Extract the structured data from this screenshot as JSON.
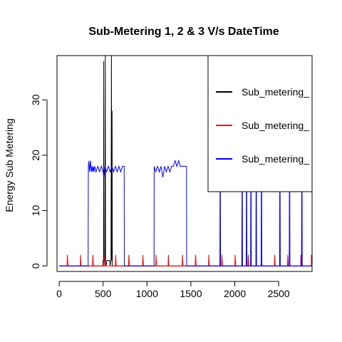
{
  "chart_data": {
    "type": "line",
    "title": "Sub-Metering 1, 2 & 3 V/s DateTime",
    "xlabel": "",
    "ylabel": "Energy Sub Metering",
    "xlim": [
      -25,
      2880
    ],
    "ylim": [
      -1,
      38
    ],
    "x_ticks": [
      0,
      500,
      1000,
      1500,
      2000,
      2500
    ],
    "y_ticks": [
      0,
      10,
      20,
      30
    ],
    "grid": false,
    "legend_position": "top-right",
    "series": [
      {
        "name": "Sub_metering_",
        "color": "#000000",
        "points": [
          [
            0,
            0
          ],
          [
            498,
            0
          ],
          [
            500,
            1
          ],
          [
            505,
            1
          ],
          [
            507,
            37
          ],
          [
            509,
            1
          ],
          [
            512,
            0
          ],
          [
            520,
            1
          ],
          [
            525,
            38
          ],
          [
            528,
            1
          ],
          [
            533,
            0
          ],
          [
            545,
            1
          ],
          [
            575,
            1
          ],
          [
            580,
            0
          ],
          [
            590,
            1
          ],
          [
            595,
            38
          ],
          [
            598,
            1
          ],
          [
            602,
            28
          ],
          [
            605,
            0
          ],
          [
            2880,
            0
          ]
        ]
      },
      {
        "name": "Sub_metering_",
        "color": "#ff0000",
        "points": [
          [
            0,
            0
          ],
          [
            90,
            0
          ],
          [
            93,
            2
          ],
          [
            97,
            1
          ],
          [
            100,
            0
          ],
          [
            240,
            0
          ],
          [
            243,
            2
          ],
          [
            247,
            1
          ],
          [
            250,
            0
          ],
          [
            380,
            0
          ],
          [
            383,
            2
          ],
          [
            387,
            1
          ],
          [
            390,
            0
          ],
          [
            510,
            0
          ],
          [
            513,
            2
          ],
          [
            517,
            1
          ],
          [
            520,
            0
          ],
          [
            640,
            0
          ],
          [
            643,
            2
          ],
          [
            647,
            1
          ],
          [
            650,
            0
          ],
          [
            790,
            0
          ],
          [
            793,
            2
          ],
          [
            797,
            1
          ],
          [
            800,
            0
          ],
          [
            950,
            0
          ],
          [
            953,
            2
          ],
          [
            957,
            1
          ],
          [
            960,
            0
          ],
          [
            1100,
            0
          ],
          [
            1103,
            2
          ],
          [
            1107,
            1
          ],
          [
            1110,
            0
          ],
          [
            1240,
            0
          ],
          [
            1243,
            2
          ],
          [
            1247,
            1
          ],
          [
            1250,
            0
          ],
          [
            1400,
            0
          ],
          [
            1403,
            2
          ],
          [
            1407,
            1
          ],
          [
            1410,
            0
          ],
          [
            1550,
            0
          ],
          [
            1553,
            2
          ],
          [
            1557,
            1
          ],
          [
            1560,
            0
          ],
          [
            1700,
            0
          ],
          [
            1703,
            2
          ],
          [
            1707,
            1
          ],
          [
            1710,
            0
          ],
          [
            1850,
            0
          ],
          [
            1853,
            2
          ],
          [
            1857,
            1
          ],
          [
            1860,
            0
          ],
          [
            2000,
            0
          ],
          [
            2003,
            2
          ],
          [
            2007,
            1
          ],
          [
            2010,
            0
          ],
          [
            2150,
            0
          ],
          [
            2153,
            2
          ],
          [
            2157,
            1
          ],
          [
            2160,
            0
          ],
          [
            2300,
            0
          ],
          [
            2303,
            2
          ],
          [
            2307,
            1
          ],
          [
            2310,
            0
          ],
          [
            2450,
            0
          ],
          [
            2453,
            2
          ],
          [
            2457,
            1
          ],
          [
            2460,
            0
          ],
          [
            2600,
            0
          ],
          [
            2603,
            2
          ],
          [
            2607,
            1
          ],
          [
            2610,
            0
          ],
          [
            2750,
            0
          ],
          [
            2753,
            2
          ],
          [
            2757,
            1
          ],
          [
            2760,
            0
          ],
          [
            2870,
            0
          ],
          [
            2873,
            2
          ],
          [
            2877,
            1
          ],
          [
            2880,
            1
          ]
        ]
      },
      {
        "name": "Sub_metering_",
        "color": "#0000ff",
        "points": [
          [
            0,
            0
          ],
          [
            330,
            0
          ],
          [
            332,
            18
          ],
          [
            340,
            19
          ],
          [
            345,
            17
          ],
          [
            352,
            18
          ],
          [
            358,
            19
          ],
          [
            365,
            17
          ],
          [
            372,
            18
          ],
          [
            380,
            17
          ],
          [
            388,
            18
          ],
          [
            396,
            17
          ],
          [
            404,
            18
          ],
          [
            420,
            17
          ],
          [
            440,
            18
          ],
          [
            460,
            17
          ],
          [
            480,
            18
          ],
          [
            500,
            17
          ],
          [
            510,
            16
          ],
          [
            520,
            18
          ],
          [
            540,
            17
          ],
          [
            560,
            18
          ],
          [
            580,
            17
          ],
          [
            600,
            18
          ],
          [
            620,
            17
          ],
          [
            640,
            18
          ],
          [
            660,
            17
          ],
          [
            680,
            18
          ],
          [
            700,
            17
          ],
          [
            720,
            18
          ],
          [
            740,
            18
          ],
          [
            742,
            0
          ],
          [
            1080,
            0
          ],
          [
            1082,
            18
          ],
          [
            1100,
            17
          ],
          [
            1120,
            18
          ],
          [
            1140,
            17
          ],
          [
            1160,
            18
          ],
          [
            1180,
            16
          ],
          [
            1200,
            18
          ],
          [
            1220,
            17
          ],
          [
            1240,
            18
          ],
          [
            1260,
            17
          ],
          [
            1280,
            18
          ],
          [
            1300,
            18
          ],
          [
            1320,
            19
          ],
          [
            1340,
            18
          ],
          [
            1360,
            19
          ],
          [
            1380,
            18
          ],
          [
            1400,
            18
          ],
          [
            1450,
            18
          ],
          [
            1452,
            0
          ],
          [
            1830,
            0
          ],
          [
            1832,
            14
          ],
          [
            1836,
            14
          ],
          [
            1838,
            0
          ],
          [
            2080,
            0
          ],
          [
            2082,
            14
          ],
          [
            2086,
            14
          ],
          [
            2088,
            0
          ],
          [
            2130,
            0
          ],
          [
            2132,
            14
          ],
          [
            2136,
            14
          ],
          [
            2138,
            0
          ],
          [
            2180,
            0
          ],
          [
            2182,
            14
          ],
          [
            2186,
            14
          ],
          [
            2188,
            0
          ],
          [
            2240,
            0
          ],
          [
            2242,
            14
          ],
          [
            2246,
            14
          ],
          [
            2248,
            0
          ],
          [
            2300,
            0
          ],
          [
            2302,
            14
          ],
          [
            2306,
            14
          ],
          [
            2308,
            0
          ],
          [
            2510,
            0
          ],
          [
            2512,
            14
          ],
          [
            2516,
            14
          ],
          [
            2518,
            0
          ],
          [
            2620,
            0
          ],
          [
            2622,
            14
          ],
          [
            2626,
            14
          ],
          [
            2628,
            0
          ],
          [
            2760,
            0
          ],
          [
            2762,
            14
          ],
          [
            2766,
            14
          ],
          [
            2768,
            0
          ],
          [
            2880,
            0
          ]
        ]
      }
    ]
  }
}
